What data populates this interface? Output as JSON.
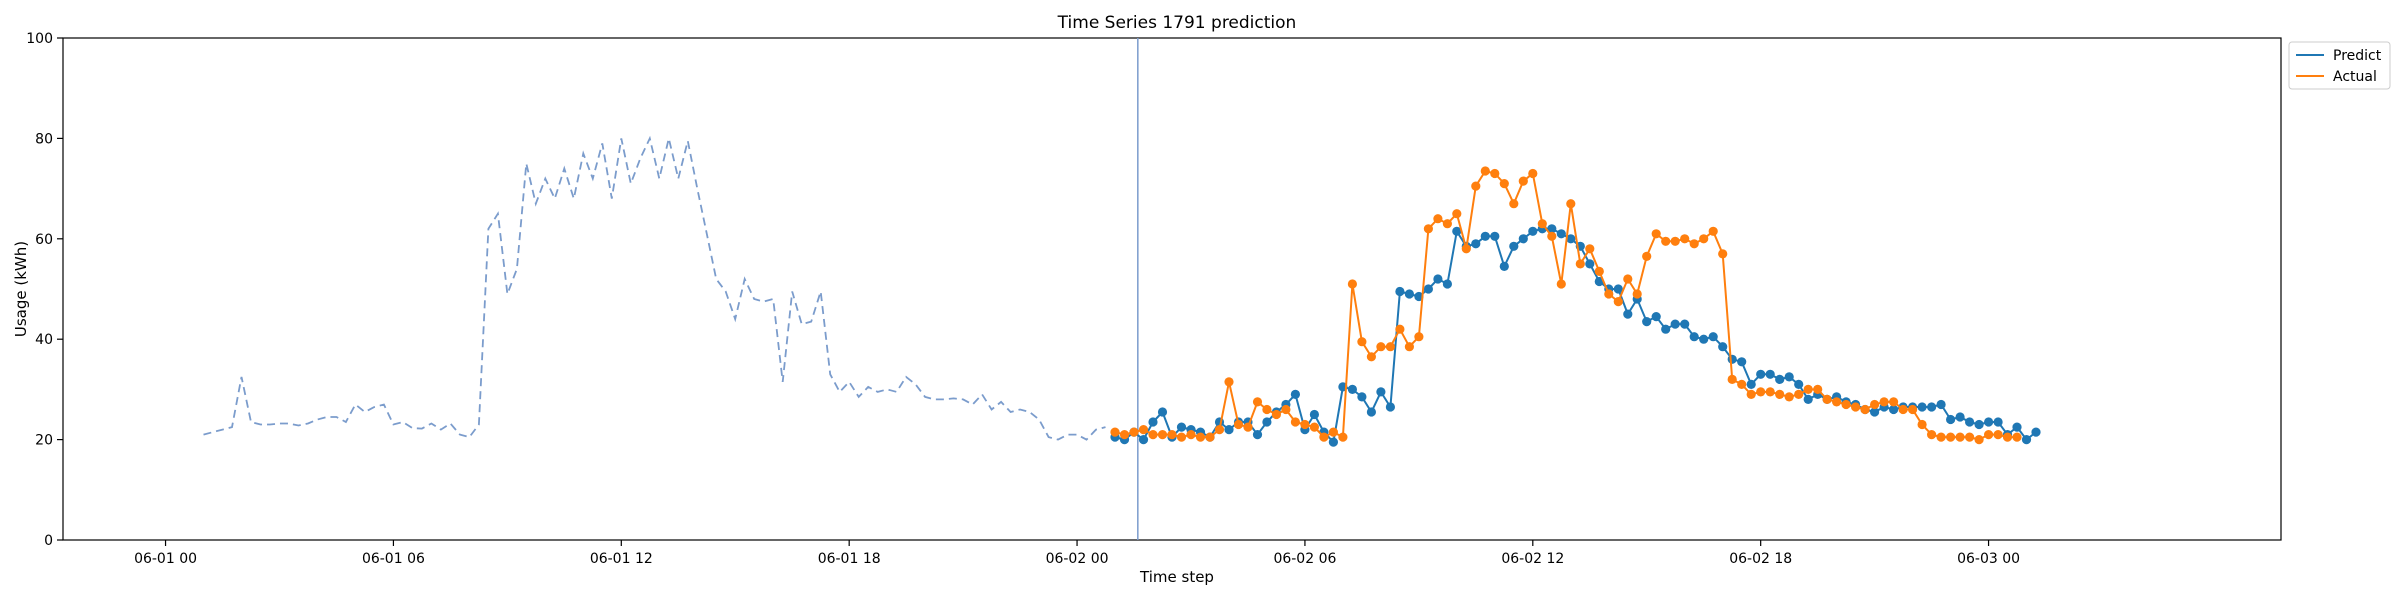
{
  "chart_data": {
    "type": "line",
    "title": "Time Series 1791 prediction",
    "xlabel": "Time step",
    "ylabel": "Usage (kWh)",
    "ylim": [
      0,
      100
    ],
    "yticks": [
      0,
      20,
      40,
      60,
      80,
      100
    ],
    "xlim_hours": [
      -2.7,
      55.7
    ],
    "xticks": [
      {
        "label": "06-01 00",
        "hour": 0
      },
      {
        "label": "06-01 06",
        "hour": 6
      },
      {
        "label": "06-01 12",
        "hour": 12
      },
      {
        "label": "06-01 18",
        "hour": 18
      },
      {
        "label": "06-02 00",
        "hour": 24
      },
      {
        "label": "06-02 06",
        "hour": 30
      },
      {
        "label": "06-02 12",
        "hour": 36
      },
      {
        "label": "06-02 18",
        "hour": 42
      },
      {
        "label": "06-03 00",
        "hour": 48
      }
    ],
    "start_hour": 1,
    "step_hours": 0.25,
    "split_hour": 25.6,
    "legend_position": "upper-right-outside",
    "history": {
      "values": [
        21,
        21.5,
        22,
        22.5,
        32.5,
        23.5,
        23,
        23,
        23.2,
        23.2,
        22.8,
        23.2,
        24,
        24.5,
        24.5,
        23.5,
        27,
        25.5,
        26.5,
        27,
        23,
        23.5,
        22.3,
        22.2,
        23.2,
        22,
        23.2,
        21,
        20.5,
        23,
        62,
        65,
        49,
        54,
        75,
        67,
        72,
        68,
        74,
        68,
        77,
        72,
        79,
        68,
        80,
        71,
        76,
        80,
        72,
        80,
        72,
        79.5,
        70,
        61,
        52,
        49.5,
        44,
        52,
        48,
        47.5,
        48,
        31.5,
        49.5,
        43,
        43.5,
        49.5,
        33,
        29.5,
        31.5,
        28.5,
        30.5,
        29.5,
        30,
        29.5,
        32.5,
        31,
        28.5,
        28,
        28,
        28.2,
        28,
        27,
        29,
        26,
        27.5,
        25.5,
        26,
        25.5,
        24,
        20.5,
        20,
        21,
        21,
        20,
        22,
        22.5
      ],
      "color": "#7b9ccc"
    },
    "series": [
      {
        "name": "Predict",
        "color": "#1f77b4",
        "values": [
          20.5,
          20,
          21.5,
          20,
          23.5,
          25.5,
          20.5,
          22.5,
          22,
          21.5,
          20.5,
          23.5,
          22,
          23.5,
          23.5,
          21,
          23.5,
          25.5,
          27,
          29,
          22,
          25,
          21.5,
          19.5,
          30.5,
          30,
          28.5,
          25.5,
          29.5,
          26.5,
          49.5,
          49,
          48.5,
          50,
          52,
          51,
          61.5,
          58.5,
          59,
          60.5,
          60.5,
          54.5,
          58.5,
          60,
          61.5,
          62,
          62,
          61,
          60,
          58.5,
          55,
          51.5,
          50,
          50,
          45,
          48,
          43.5,
          44.5,
          42,
          43,
          43,
          40.5,
          40,
          40.5,
          38.5,
          36,
          35.5,
          31,
          33,
          33,
          32,
          32.5,
          31,
          28,
          29,
          28,
          28.5,
          27.5,
          27,
          26,
          25.5,
          26.5,
          26,
          26.5,
          26.5,
          26.5,
          26.5,
          27,
          24,
          24.5,
          23.5,
          23,
          23.5,
          23.5,
          21,
          22.5,
          20,
          21.5
        ]
      },
      {
        "name": "Actual",
        "color": "#ff7f0e",
        "values": [
          21.5,
          21,
          21.5,
          22,
          21,
          21,
          21,
          20.5,
          21,
          20.5,
          20.5,
          22,
          31.5,
          23,
          22.5,
          27.5,
          26,
          25,
          26,
          23.5,
          23,
          22.5,
          20.5,
          21.5,
          20.5,
          51,
          39.5,
          36.5,
          38.5,
          38.5,
          42,
          38.5,
          40.5,
          62,
          64,
          63,
          65,
          58,
          70.5,
          73.5,
          73,
          71,
          67,
          71.5,
          73,
          63,
          60.5,
          51,
          67,
          55,
          58,
          53.5,
          49,
          47.5,
          52,
          49,
          56.5,
          61,
          59.5,
          59.5,
          60,
          59,
          60,
          61.5,
          57,
          32,
          31,
          29,
          29.5,
          29.5,
          29,
          28.5,
          29,
          30,
          30,
          28,
          27.5,
          27,
          26.5,
          26,
          27,
          27.5,
          27.5,
          26,
          26,
          23,
          21,
          20.5,
          20.5,
          20.5,
          20.5,
          20,
          21,
          21,
          20.5,
          20.5
        ]
      }
    ]
  }
}
